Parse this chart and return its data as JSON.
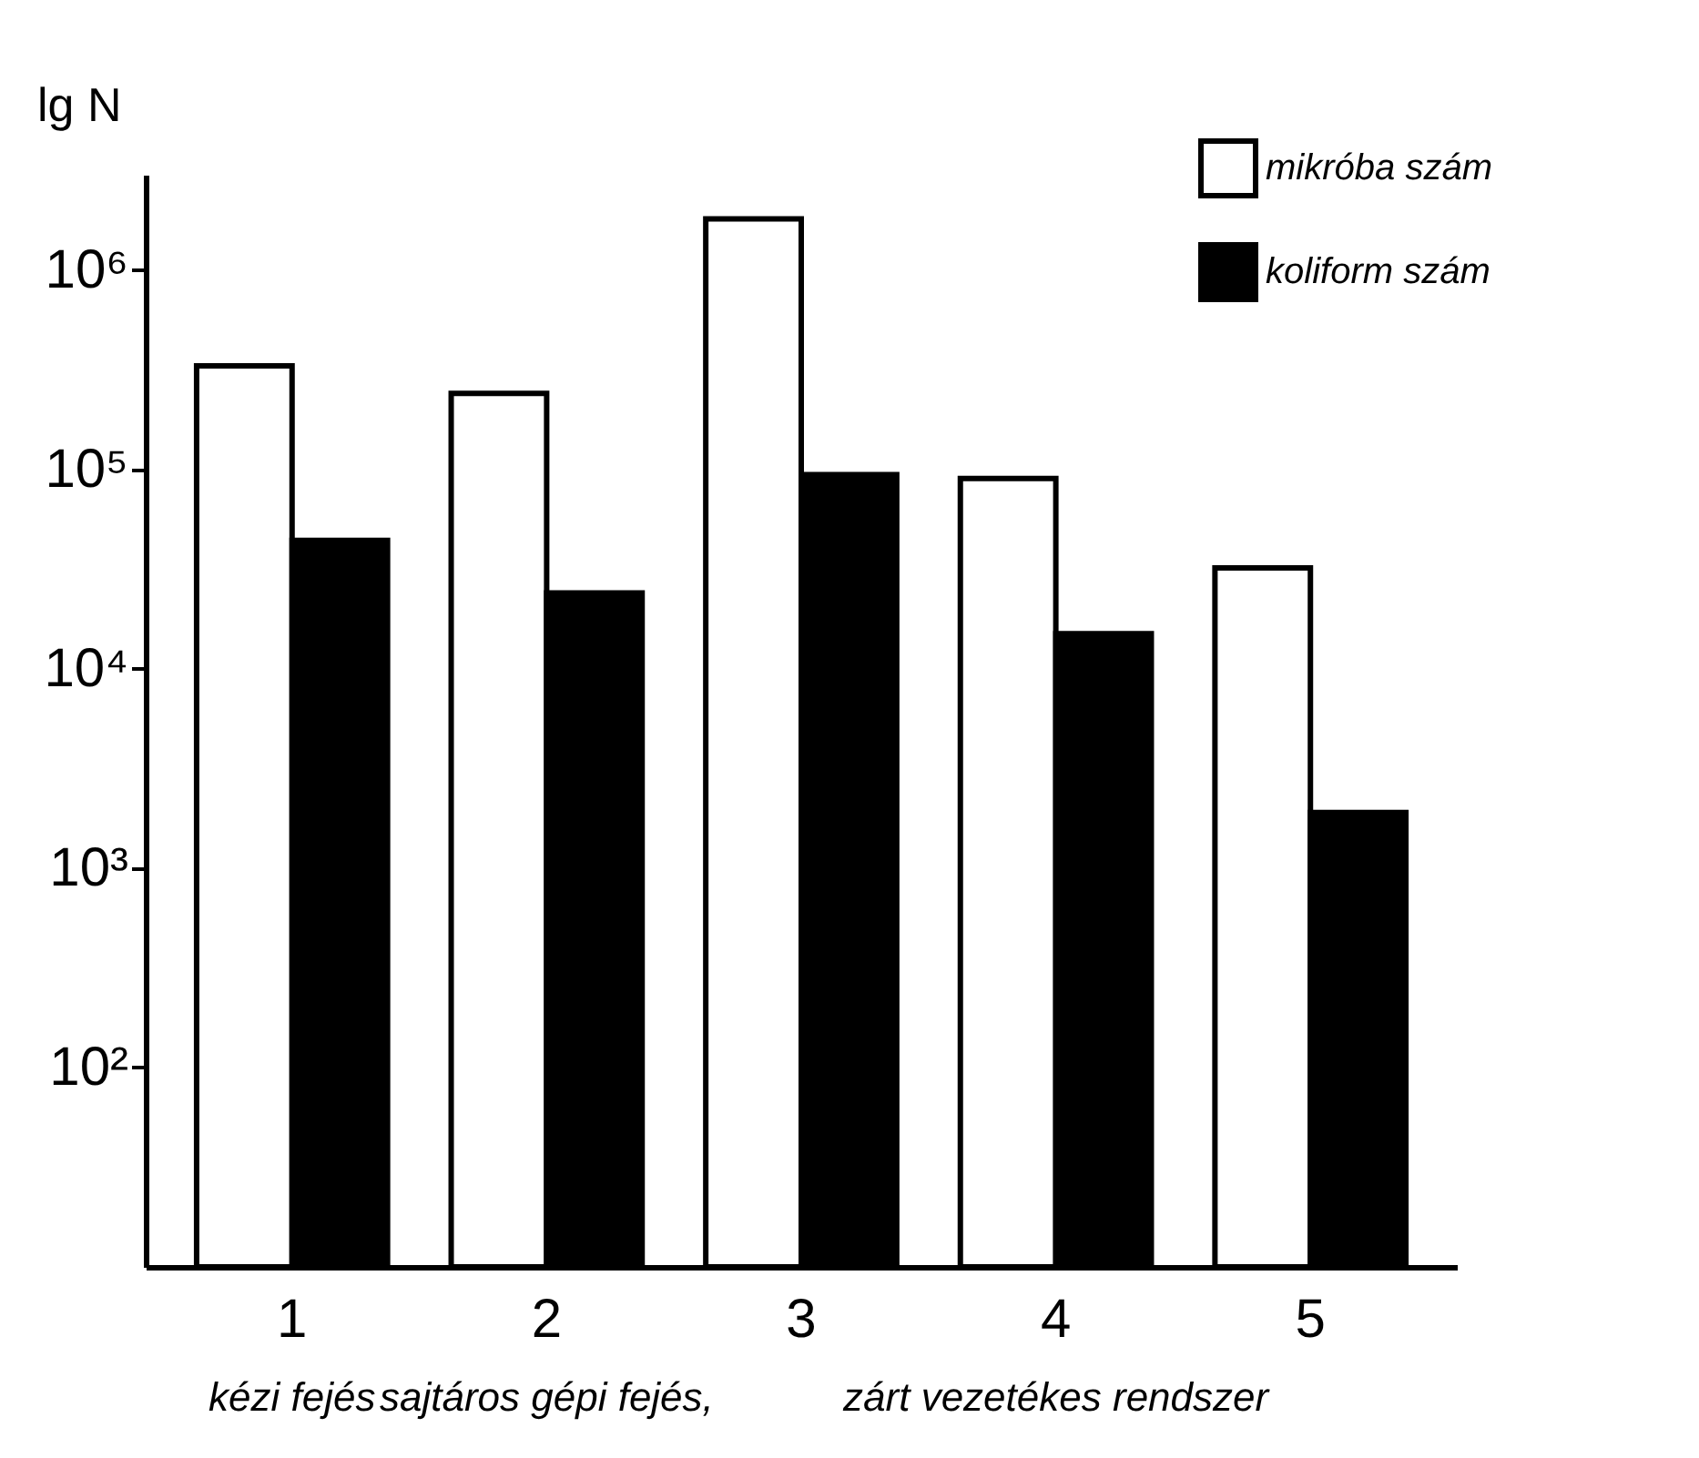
{
  "chart_data": {
    "type": "bar",
    "ylabel": "lg N",
    "categories": [
      "1",
      "2",
      "3",
      "4",
      "5"
    ],
    "series": [
      {
        "name": "mikróba szám",
        "color": "#ffffff",
        "values": [
          330000,
          240000,
          1800000,
          90000,
          32000
        ]
      },
      {
        "name": "koliform szám",
        "color": "#000000",
        "values": [
          44000,
          24000,
          94000,
          15000,
          1900
        ]
      }
    ],
    "log": "y",
    "ylim": [
      10,
      3000000
    ],
    "yticks": [
      {
        "value": 100,
        "label": "10²"
      },
      {
        "value": 1000,
        "label": "10³"
      },
      {
        "value": 10000,
        "label": "10⁴"
      },
      {
        "value": 100000,
        "label": "10⁵"
      },
      {
        "value": 1000000,
        "label": "10⁶"
      }
    ],
    "grid": false,
    "legend": "top right",
    "annotations": [
      "kézi fejés",
      "sajtáros gépi fejés,",
      "zárt vezetékes rendszer"
    ]
  }
}
